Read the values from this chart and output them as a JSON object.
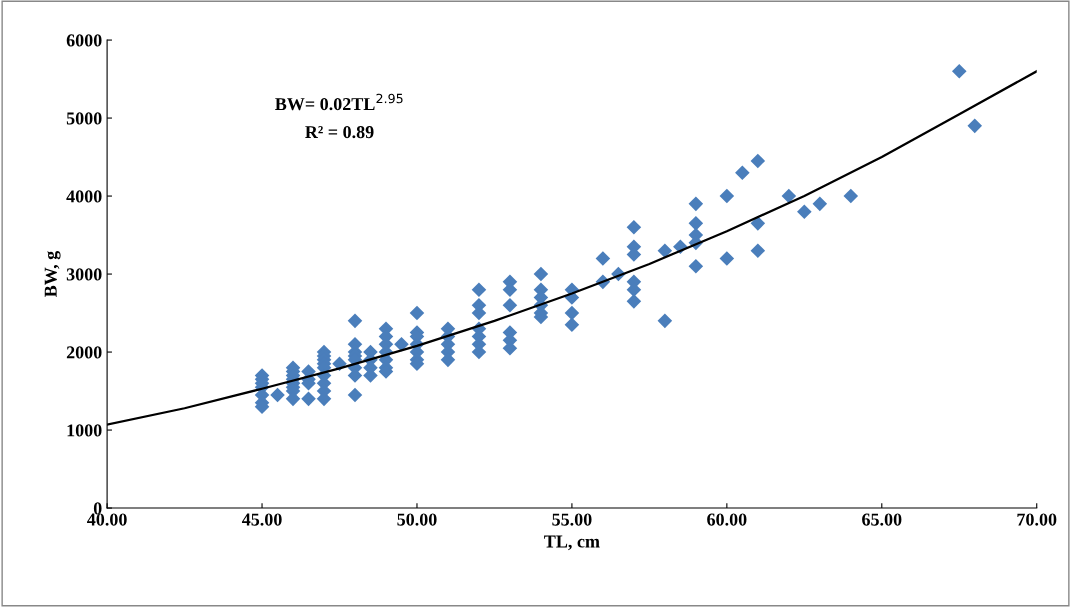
{
  "chart_data": {
    "type": "scatter",
    "xlabel": "TL, cm",
    "ylabel": "BW, g",
    "annotations": [
      "BW= 0.02TL$^{2.95}$",
      "R² = 0.89"
    ],
    "xlim": [
      40,
      70
    ],
    "ylim": [
      0,
      6000
    ],
    "xticks": [
      {
        "value": 40,
        "label": "40.00"
      },
      {
        "value": 45,
        "label": "45.00"
      },
      {
        "value": 50,
        "label": "50.00"
      },
      {
        "value": 55,
        "label": "55.00"
      },
      {
        "value": 60,
        "label": "60.00"
      },
      {
        "value": 65,
        "label": "65.00"
      },
      {
        "value": 70,
        "label": "70.00"
      }
    ],
    "yticks": [
      0,
      1000,
      2000,
      3000,
      4000,
      5000,
      6000
    ],
    "grid": false,
    "legend": false,
    "series": [
      {
        "marker": "diamond",
        "color": "#4a7ebb",
        "x": [
          45,
          45,
          45,
          45,
          45,
          45,
          45,
          45.5,
          46,
          46,
          46,
          46,
          46,
          46,
          46,
          46,
          46.5,
          46.5,
          46.5,
          46.5,
          47,
          47,
          47,
          47,
          47,
          47,
          47,
          47,
          47,
          47.5,
          48,
          48,
          48,
          48,
          48,
          48,
          48,
          48,
          48.5,
          48.5,
          48.5,
          48.5,
          49,
          49,
          49,
          49,
          49,
          49,
          49,
          49.5,
          50,
          50,
          50,
          50,
          50,
          50,
          50,
          51,
          51,
          51,
          51,
          51,
          52,
          52,
          52,
          52,
          52,
          52,
          52,
          53,
          53,
          53,
          53,
          53,
          53,
          54,
          54,
          54,
          54,
          54,
          54,
          55,
          55,
          55,
          55,
          56,
          56,
          56.5,
          57,
          57,
          57,
          57,
          57,
          57,
          58,
          58,
          58.5,
          59,
          59,
          59,
          59,
          59,
          60,
          60,
          60.5,
          61,
          61,
          61,
          62,
          62.5,
          63,
          64,
          67.5,
          68
        ],
        "values": [
          1700,
          1650,
          1600,
          1550,
          1450,
          1350,
          1300,
          1450,
          1800,
          1750,
          1700,
          1650,
          1600,
          1550,
          1500,
          1400,
          1750,
          1650,
          1600,
          1400,
          2000,
          1950,
          1900,
          1850,
          1800,
          1700,
          1600,
          1500,
          1400,
          1850,
          2400,
          2100,
          2000,
          1950,
          1900,
          1800,
          1700,
          1450,
          2000,
          1900,
          1800,
          1700,
          2300,
          2200,
          2100,
          2000,
          1900,
          1800,
          1750,
          2100,
          2500,
          2250,
          2200,
          2100,
          2000,
          1900,
          1850,
          2300,
          2200,
          2100,
          2000,
          1900,
          2800,
          2600,
          2500,
          2300,
          2200,
          2100,
          2000,
          2900,
          2800,
          2600,
          2250,
          2150,
          2050,
          3000,
          2800,
          2700,
          2600,
          2500,
          2450,
          2800,
          2700,
          2500,
          2350,
          3200,
          2900,
          3000,
          3600,
          3350,
          3250,
          2900,
          2800,
          2650,
          3300,
          2400,
          3350,
          3900,
          3650,
          3500,
          3400,
          3100,
          4000,
          3200,
          4300,
          4450,
          3650,
          3300,
          4000,
          3800,
          3900,
          4000,
          5600,
          4900
        ]
      },
      {
        "type": "line",
        "marker": "none",
        "line_style": "solid",
        "color": "#000000",
        "x": [
          40,
          42.5,
          45,
          47.5,
          50,
          52.5,
          55,
          57.5,
          60,
          62.5,
          65,
          67.5,
          70
        ],
        "values": [
          1070,
          1280,
          1530,
          1790,
          2080,
          2400,
          2750,
          3130,
          3550,
          4000,
          4500,
          5050,
          5600
        ]
      }
    ]
  }
}
